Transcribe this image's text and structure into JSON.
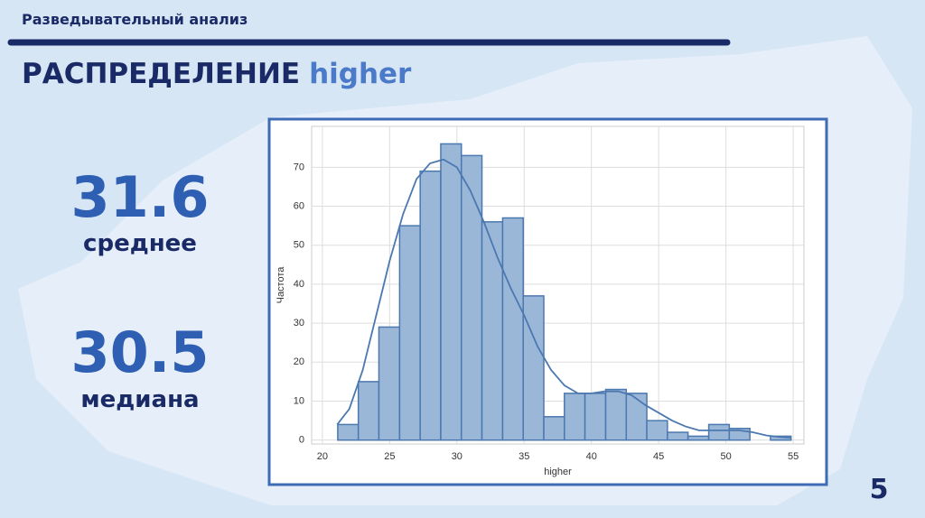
{
  "slide": {
    "section": "Разведывательный анализ",
    "title_main": "РАСПРЕДЕЛЕНИЕ",
    "title_accent": "higher",
    "stats": [
      {
        "value": "31.6",
        "label": "среднее"
      },
      {
        "value": "30.5",
        "label": "медиана"
      }
    ],
    "page": "5"
  },
  "chart_data": {
    "type": "histogram",
    "xlabel": "higher",
    "ylabel": "Частота",
    "bins": [
      21.14,
      22.67,
      24.2,
      25.74,
      27.27,
      28.8,
      30.33,
      31.86,
      33.4,
      34.93,
      36.46,
      37.99,
      39.52,
      41.06,
      42.59,
      44.12,
      45.65,
      47.18,
      48.72,
      50.25,
      51.78,
      53.31,
      54.84
    ],
    "values": [
      4,
      15,
      29,
      55,
      69,
      76,
      73,
      56,
      57,
      37,
      6,
      12,
      12,
      13,
      12,
      5,
      2,
      1,
      4,
      3,
      0,
      1
    ],
    "color": "#9ab7d8",
    "edgecolor": "#4c78b0",
    "kde": {
      "color": "#4c78b0",
      "x": [
        21.1,
        22,
        23,
        24,
        25,
        26,
        27,
        28,
        29,
        30,
        31,
        32,
        33,
        34,
        35,
        36,
        37,
        38,
        39,
        40,
        41,
        42,
        43,
        44,
        45,
        46,
        47,
        48,
        49,
        50,
        51,
        52,
        53,
        54,
        54.8
      ],
      "values": [
        4,
        8,
        18,
        32,
        46,
        58,
        67,
        71,
        72,
        70,
        64,
        56,
        47,
        39,
        32,
        24,
        18,
        14,
        12,
        12,
        12.5,
        12.5,
        11.5,
        9,
        7,
        5,
        3.5,
        2.5,
        2.5,
        2.5,
        2.5,
        2,
        1.2,
        0.8,
        0.6
      ]
    },
    "xlim": [
      19.2,
      55.8
    ],
    "ylim": [
      -1,
      80.5
    ],
    "xticks": [
      20,
      25,
      30,
      35,
      40,
      45,
      50,
      55
    ],
    "yticks": [
      0,
      10,
      20,
      30,
      40,
      50,
      60,
      70
    ],
    "grid": true
  }
}
